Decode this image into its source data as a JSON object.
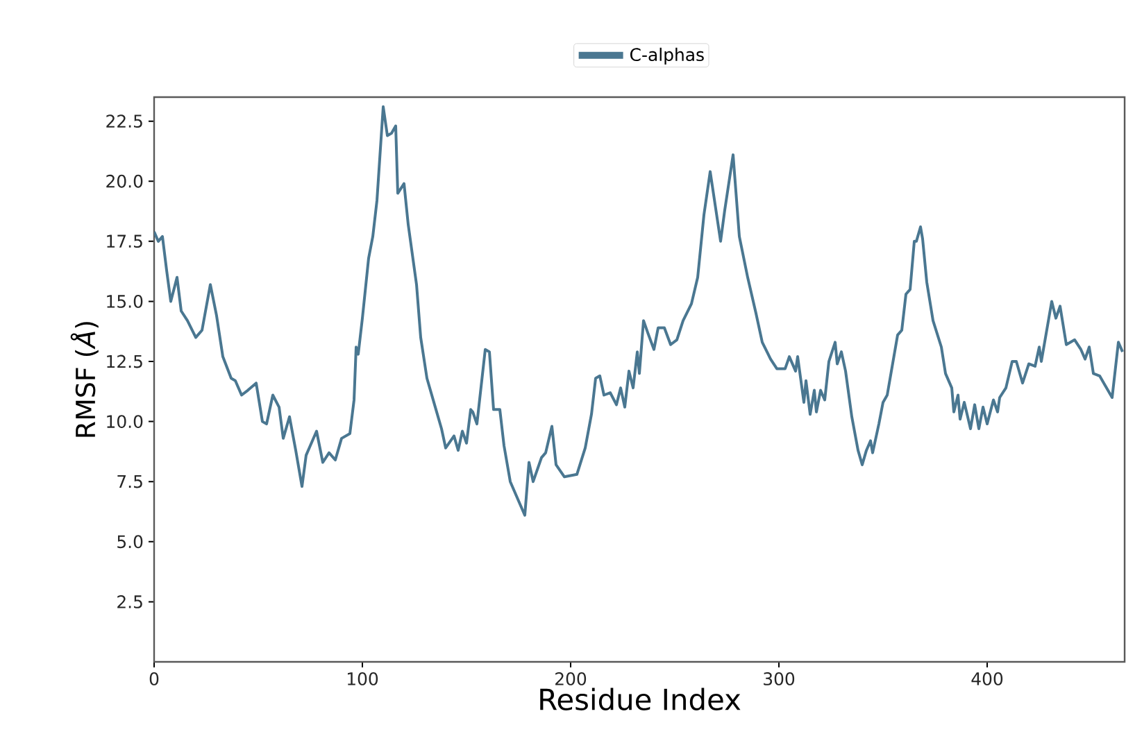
{
  "chart_data": {
    "type": "line",
    "xlabel": "Residue Index",
    "ylabel": "RMSF (*Å*)",
    "xlim": [
      0,
      466
    ],
    "ylim": [
      0,
      23.5
    ],
    "xticks": [
      0,
      100,
      200,
      300,
      400
    ],
    "yticks": [
      2.5,
      {
        "value": 5,
        "label": "5.0"
      },
      7.5,
      {
        "value": 10,
        "label": "10.0"
      },
      12.5,
      {
        "value": 15,
        "label": "15.0"
      },
      17.5,
      {
        "value": 20,
        "label": "20.0"
      },
      22.5
    ],
    "legend": "top",
    "line_style": "solid",
    "series": [
      {
        "name": "C-alphas",
        "color": "#4a7791",
        "x": [
          0,
          2,
          4,
          6,
          8,
          11,
          13,
          16,
          20,
          23,
          27,
          30,
          33,
          37,
          39,
          42,
          45,
          49,
          52,
          54,
          57,
          60,
          62,
          65,
          68,
          71,
          73,
          75,
          78,
          81,
          84,
          87,
          90,
          94,
          96,
          97,
          98,
          100,
          103,
          105,
          107,
          110,
          112,
          114,
          116,
          117,
          120,
          122,
          126,
          128,
          131,
          135,
          138,
          140,
          144,
          146,
          148,
          150,
          152,
          153,
          155,
          159,
          161,
          163,
          166,
          168,
          171,
          175,
          178,
          180,
          182,
          186,
          188,
          191,
          193,
          197,
          203,
          207,
          210,
          212,
          214,
          216,
          219,
          222,
          224,
          226,
          228,
          230,
          232,
          233,
          235,
          237,
          240,
          242,
          245,
          248,
          251,
          254,
          258,
          261,
          264,
          267,
          272,
          274,
          278,
          281,
          285,
          289,
          292,
          296,
          299,
          303,
          305,
          308,
          309,
          312,
          313,
          315,
          317,
          318,
          320,
          322,
          324,
          327,
          328,
          330,
          332,
          335,
          338,
          340,
          342,
          344,
          345,
          348,
          350,
          352,
          354,
          357,
          359,
          361,
          363,
          365,
          366,
          368,
          369,
          371,
          374,
          378,
          380,
          383,
          384,
          386,
          387,
          389,
          392,
          394,
          396,
          398,
          400,
          403,
          405,
          406,
          409,
          412,
          414,
          417,
          420,
          423,
          425,
          426,
          429,
          431,
          433,
          435,
          438,
          442,
          445,
          447,
          449,
          451,
          454,
          456,
          460,
          463,
          465
        ],
        "values": [
          17.9,
          17.5,
          17.7,
          16.3,
          15.0,
          16.0,
          14.6,
          14.2,
          13.5,
          13.8,
          15.7,
          14.4,
          12.7,
          11.8,
          11.7,
          11.1,
          11.3,
          11.6,
          10.0,
          9.9,
          11.1,
          10.6,
          9.3,
          10.2,
          8.8,
          7.3,
          8.6,
          9.0,
          9.6,
          8.3,
          8.7,
          8.4,
          9.3,
          9.5,
          10.9,
          13.1,
          12.8,
          14.3,
          16.8,
          17.7,
          19.2,
          23.1,
          21.9,
          22.0,
          22.3,
          19.5,
          19.9,
          18.2,
          15.7,
          13.5,
          11.8,
          10.6,
          9.7,
          8.9,
          9.4,
          8.8,
          9.6,
          9.1,
          10.5,
          10.4,
          9.9,
          13.0,
          12.9,
          10.5,
          10.5,
          9.0,
          7.5,
          6.7,
          6.1,
          8.3,
          7.5,
          8.5,
          8.7,
          9.8,
          8.2,
          7.7,
          7.8,
          8.9,
          10.3,
          11.8,
          11.9,
          11.1,
          11.2,
          10.7,
          11.4,
          10.6,
          12.1,
          11.4,
          12.9,
          12.0,
          14.2,
          13.7,
          13.0,
          13.9,
          13.9,
          13.2,
          13.4,
          14.2,
          14.9,
          16.0,
          18.6,
          20.4,
          17.5,
          18.8,
          21.1,
          17.7,
          16.0,
          14.5,
          13.3,
          12.6,
          12.2,
          12.2,
          12.7,
          12.1,
          12.7,
          10.8,
          11.7,
          10.3,
          11.3,
          10.4,
          11.3,
          10.9,
          12.5,
          13.3,
          12.4,
          12.9,
          12.1,
          10.2,
          8.8,
          8.2,
          8.8,
          9.2,
          8.7,
          9.9,
          10.8,
          11.1,
          12.1,
          13.6,
          13.8,
          15.3,
          15.5,
          17.5,
          17.5,
          18.1,
          17.6,
          15.8,
          14.2,
          13.1,
          12.0,
          11.4,
          10.4,
          11.1,
          10.1,
          10.8,
          9.7,
          10.7,
          9.7,
          10.6,
          9.9,
          10.9,
          10.4,
          11.0,
          11.4,
          12.5,
          12.5,
          11.6,
          12.4,
          12.3,
          13.1,
          12.5,
          14.0,
          15.0,
          14.3,
          14.8,
          13.2,
          13.4,
          13.0,
          12.6,
          13.1,
          12.0,
          11.9,
          11.6,
          11.0,
          13.3,
          12.9
        ]
      }
    ]
  }
}
